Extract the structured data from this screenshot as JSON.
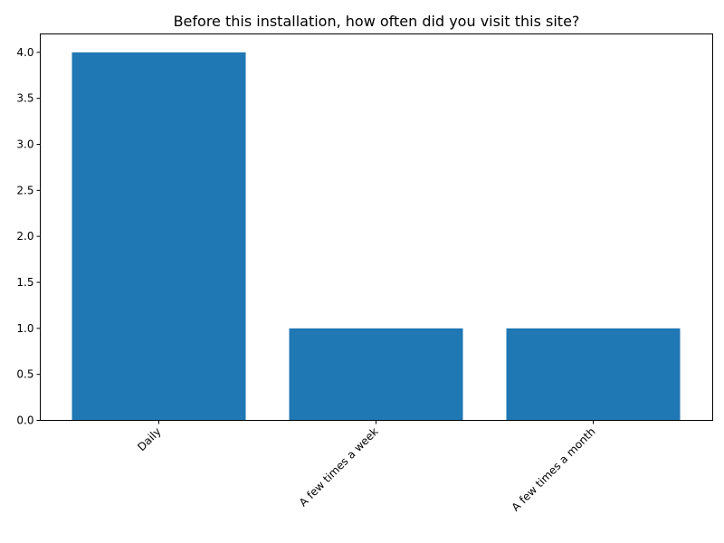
{
  "chart_data": {
    "type": "bar",
    "title": "Before this installation, how often did you visit this site?",
    "categories": [
      "Daily",
      "A few times a week",
      "A few times a month"
    ],
    "values": [
      4,
      1,
      1
    ],
    "xlabel": "",
    "ylabel": "",
    "ylim": [
      0,
      4.2
    ],
    "yticks": [
      "0.0",
      "0.5",
      "1.0",
      "1.5",
      "2.0",
      "2.5",
      "3.0",
      "3.5",
      "4.0"
    ],
    "grid": false,
    "legend": "none",
    "bar_color": "#1f77b4"
  }
}
